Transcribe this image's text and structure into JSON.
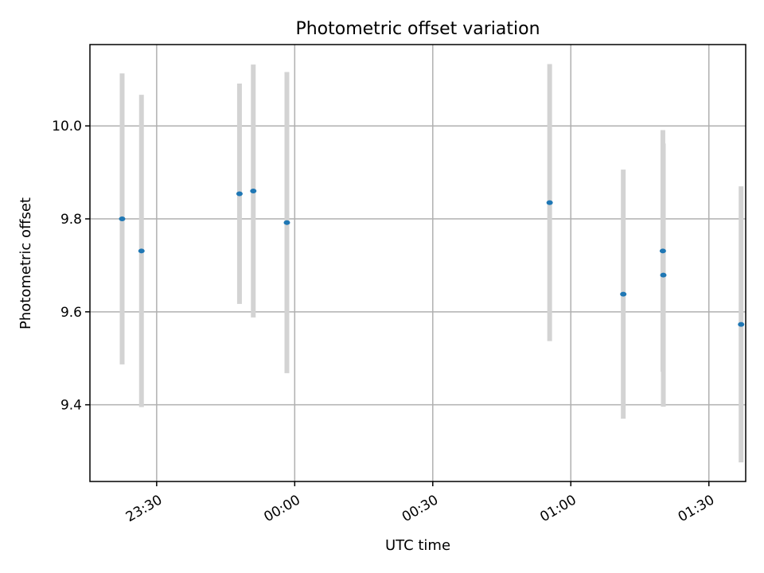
{
  "chart_data": {
    "type": "scatter",
    "title": "Photometric offset variation",
    "xlabel": "UTC time",
    "ylabel": "Photometric offset",
    "x_ticks": [
      "23:30",
      "00:00",
      "00:30",
      "01:00",
      "01:30"
    ],
    "y_ticks": [
      "9.4",
      "9.6",
      "9.8",
      "10.0"
    ],
    "xlim": [
      "23:15:30",
      "01:38:00"
    ],
    "ylim": [
      9.235,
      10.175
    ],
    "grid": true,
    "colors": {
      "point": "#1f77b4",
      "errorbar": "#d3d3d3"
    },
    "points": [
      {
        "x": "23:22:30",
        "y": 9.8,
        "err": 0.313
      },
      {
        "x": "23:26:42",
        "y": 9.731,
        "err": 0.336
      },
      {
        "x": "23:48:00",
        "y": 9.854,
        "err": 0.237
      },
      {
        "x": "23:51:00",
        "y": 9.86,
        "err": 0.272
      },
      {
        "x": "23:58:18",
        "y": 9.792,
        "err": 0.324
      },
      {
        "x": "00:55:24",
        "y": 9.835,
        "err": 0.298
      },
      {
        "x": "01:11:24",
        "y": 9.638,
        "err": 0.268
      },
      {
        "x": "01:20:00",
        "y": 9.731,
        "err": 0.26
      },
      {
        "x": "01:20:06",
        "y": 9.679,
        "err": 0.283
      },
      {
        "x": "01:37:00",
        "y": 9.573,
        "err": 0.297
      }
    ]
  }
}
